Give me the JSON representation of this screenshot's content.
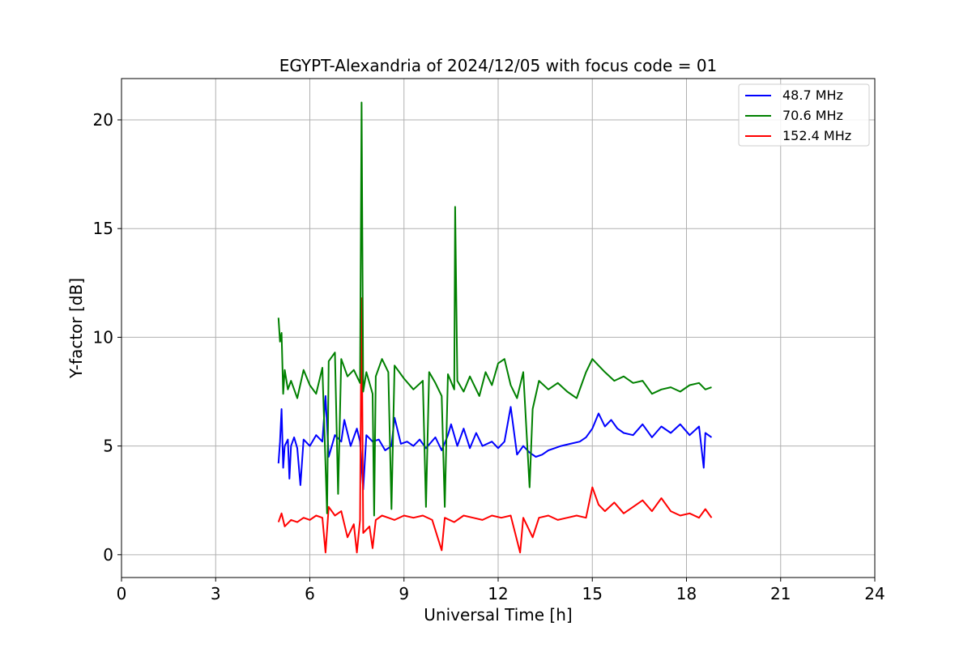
{
  "chart_data": {
    "type": "line",
    "title": "EGYPT-Alexandria of 2024/12/05 with focus code = 01",
    "xlabel": "Universal Time [h]",
    "ylabel": "Y-factor [dB]",
    "xlim": [
      0,
      24
    ],
    "ylim": [
      -1.05,
      21.9
    ],
    "xticks": [
      0,
      3,
      6,
      9,
      12,
      15,
      18,
      21,
      24
    ],
    "yticks": [
      0,
      5,
      10,
      15,
      20
    ],
    "grid": true,
    "legend_position": "top-right",
    "series": [
      {
        "name": " 48.7 MHz",
        "color": "#0000ff",
        "points": [
          [
            5.0,
            4.2
          ],
          [
            5.05,
            5.2
          ],
          [
            5.1,
            6.7
          ],
          [
            5.15,
            4.0
          ],
          [
            5.2,
            5.0
          ],
          [
            5.3,
            5.3
          ],
          [
            5.35,
            3.5
          ],
          [
            5.4,
            5.0
          ],
          [
            5.5,
            5.4
          ],
          [
            5.6,
            4.9
          ],
          [
            5.7,
            3.2
          ],
          [
            5.8,
            5.3
          ],
          [
            6.0,
            5.0
          ],
          [
            6.2,
            5.5
          ],
          [
            6.4,
            5.2
          ],
          [
            6.5,
            7.3
          ],
          [
            6.6,
            4.5
          ],
          [
            6.8,
            5.5
          ],
          [
            7.0,
            5.2
          ],
          [
            7.1,
            6.2
          ],
          [
            7.3,
            5.0
          ],
          [
            7.5,
            5.8
          ],
          [
            7.6,
            5.2
          ],
          [
            7.7,
            3.0
          ],
          [
            7.8,
            5.5
          ],
          [
            8.0,
            5.2
          ],
          [
            8.2,
            5.3
          ],
          [
            8.4,
            4.8
          ],
          [
            8.6,
            5.0
          ],
          [
            8.7,
            6.3
          ],
          [
            8.9,
            5.1
          ],
          [
            9.1,
            5.2
          ],
          [
            9.3,
            5.0
          ],
          [
            9.5,
            5.3
          ],
          [
            9.7,
            4.9
          ],
          [
            10.0,
            5.4
          ],
          [
            10.2,
            4.8
          ],
          [
            10.4,
            5.5
          ],
          [
            10.5,
            6.0
          ],
          [
            10.7,
            5.0
          ],
          [
            10.9,
            5.8
          ],
          [
            11.1,
            4.9
          ],
          [
            11.3,
            5.6
          ],
          [
            11.5,
            5.0
          ],
          [
            11.8,
            5.2
          ],
          [
            12.0,
            4.9
          ],
          [
            12.2,
            5.2
          ],
          [
            12.4,
            6.8
          ],
          [
            12.6,
            4.6
          ],
          [
            12.8,
            5.0
          ],
          [
            13.0,
            4.7
          ],
          [
            13.2,
            4.5
          ],
          [
            13.4,
            4.6
          ],
          [
            13.6,
            4.8
          ],
          [
            13.8,
            4.9
          ],
          [
            14.0,
            5.0
          ],
          [
            14.3,
            5.1
          ],
          [
            14.6,
            5.2
          ],
          [
            14.8,
            5.4
          ],
          [
            15.0,
            5.8
          ],
          [
            15.2,
            6.5
          ],
          [
            15.4,
            5.9
          ],
          [
            15.6,
            6.2
          ],
          [
            15.8,
            5.8
          ],
          [
            16.0,
            5.6
          ],
          [
            16.3,
            5.5
          ],
          [
            16.6,
            6.0
          ],
          [
            16.9,
            5.4
          ],
          [
            17.2,
            5.9
          ],
          [
            17.5,
            5.6
          ],
          [
            17.8,
            6.0
          ],
          [
            18.1,
            5.5
          ],
          [
            18.4,
            5.9
          ],
          [
            18.55,
            4.0
          ],
          [
            18.6,
            5.6
          ],
          [
            18.8,
            5.4
          ]
        ]
      },
      {
        "name": " 70.6 MHz",
        "color": "#008000",
        "points": [
          [
            5.0,
            10.9
          ],
          [
            5.05,
            9.8
          ],
          [
            5.1,
            10.2
          ],
          [
            5.15,
            7.4
          ],
          [
            5.2,
            8.5
          ],
          [
            5.3,
            7.6
          ],
          [
            5.4,
            8.0
          ],
          [
            5.6,
            7.2
          ],
          [
            5.8,
            8.5
          ],
          [
            6.0,
            7.8
          ],
          [
            6.2,
            7.4
          ],
          [
            6.4,
            8.6
          ],
          [
            6.55,
            1.9
          ],
          [
            6.6,
            8.9
          ],
          [
            6.8,
            9.3
          ],
          [
            6.9,
            2.8
          ],
          [
            7.0,
            9.0
          ],
          [
            7.2,
            8.2
          ],
          [
            7.4,
            8.5
          ],
          [
            7.6,
            7.9
          ],
          [
            7.65,
            20.8
          ],
          [
            7.7,
            7.5
          ],
          [
            7.8,
            8.4
          ],
          [
            8.0,
            7.4
          ],
          [
            8.05,
            1.8
          ],
          [
            8.1,
            8.2
          ],
          [
            8.3,
            9.0
          ],
          [
            8.5,
            8.4
          ],
          [
            8.6,
            2.1
          ],
          [
            8.7,
            8.7
          ],
          [
            9.0,
            8.1
          ],
          [
            9.3,
            7.6
          ],
          [
            9.6,
            8.0
          ],
          [
            9.7,
            2.2
          ],
          [
            9.8,
            8.4
          ],
          [
            10.0,
            7.9
          ],
          [
            10.2,
            7.3
          ],
          [
            10.3,
            2.2
          ],
          [
            10.4,
            8.3
          ],
          [
            10.6,
            7.6
          ],
          [
            10.63,
            16.0
          ],
          [
            10.7,
            8.0
          ],
          [
            10.9,
            7.5
          ],
          [
            11.1,
            8.2
          ],
          [
            11.4,
            7.3
          ],
          [
            11.6,
            8.4
          ],
          [
            11.8,
            7.8
          ],
          [
            12.0,
            8.8
          ],
          [
            12.2,
            9.0
          ],
          [
            12.4,
            7.8
          ],
          [
            12.6,
            7.2
          ],
          [
            12.8,
            8.4
          ],
          [
            13.0,
            3.1
          ],
          [
            13.1,
            6.7
          ],
          [
            13.3,
            8.0
          ],
          [
            13.6,
            7.6
          ],
          [
            13.9,
            7.9
          ],
          [
            14.2,
            7.5
          ],
          [
            14.5,
            7.2
          ],
          [
            14.8,
            8.4
          ],
          [
            15.0,
            9.0
          ],
          [
            15.2,
            8.7
          ],
          [
            15.4,
            8.4
          ],
          [
            15.7,
            8.0
          ],
          [
            16.0,
            8.2
          ],
          [
            16.3,
            7.9
          ],
          [
            16.6,
            8.0
          ],
          [
            16.9,
            7.4
          ],
          [
            17.2,
            7.6
          ],
          [
            17.5,
            7.7
          ],
          [
            17.8,
            7.5
          ],
          [
            18.1,
            7.8
          ],
          [
            18.4,
            7.9
          ],
          [
            18.6,
            7.6
          ],
          [
            18.8,
            7.7
          ]
        ]
      },
      {
        "name": " 152.4 MHz",
        "color": "#ff0000",
        "points": [
          [
            5.0,
            1.5
          ],
          [
            5.1,
            1.9
          ],
          [
            5.2,
            1.3
          ],
          [
            5.4,
            1.6
          ],
          [
            5.6,
            1.5
          ],
          [
            5.8,
            1.7
          ],
          [
            6.0,
            1.6
          ],
          [
            6.2,
            1.8
          ],
          [
            6.4,
            1.7
          ],
          [
            6.5,
            0.1
          ],
          [
            6.6,
            2.2
          ],
          [
            6.8,
            1.8
          ],
          [
            7.0,
            2.0
          ],
          [
            7.2,
            0.8
          ],
          [
            7.4,
            1.4
          ],
          [
            7.5,
            0.1
          ],
          [
            7.6,
            1.6
          ],
          [
            7.65,
            11.8
          ],
          [
            7.7,
            1.0
          ],
          [
            7.9,
            1.3
          ],
          [
            8.0,
            0.3
          ],
          [
            8.1,
            1.6
          ],
          [
            8.3,
            1.8
          ],
          [
            8.5,
            1.7
          ],
          [
            8.7,
            1.6
          ],
          [
            9.0,
            1.8
          ],
          [
            9.3,
            1.7
          ],
          [
            9.6,
            1.8
          ],
          [
            9.9,
            1.6
          ],
          [
            10.2,
            0.2
          ],
          [
            10.3,
            1.7
          ],
          [
            10.6,
            1.5
          ],
          [
            10.9,
            1.8
          ],
          [
            11.2,
            1.7
          ],
          [
            11.5,
            1.6
          ],
          [
            11.8,
            1.8
          ],
          [
            12.1,
            1.7
          ],
          [
            12.4,
            1.8
          ],
          [
            12.7,
            0.1
          ],
          [
            12.8,
            1.7
          ],
          [
            13.1,
            0.8
          ],
          [
            13.3,
            1.7
          ],
          [
            13.6,
            1.8
          ],
          [
            13.9,
            1.6
          ],
          [
            14.2,
            1.7
          ],
          [
            14.5,
            1.8
          ],
          [
            14.8,
            1.7
          ],
          [
            15.0,
            3.1
          ],
          [
            15.2,
            2.3
          ],
          [
            15.4,
            2.0
          ],
          [
            15.7,
            2.4
          ],
          [
            16.0,
            1.9
          ],
          [
            16.3,
            2.2
          ],
          [
            16.6,
            2.5
          ],
          [
            16.9,
            2.0
          ],
          [
            17.2,
            2.6
          ],
          [
            17.5,
            2.0
          ],
          [
            17.8,
            1.8
          ],
          [
            18.1,
            1.9
          ],
          [
            18.4,
            1.7
          ],
          [
            18.6,
            2.1
          ],
          [
            18.8,
            1.7
          ]
        ]
      }
    ]
  }
}
